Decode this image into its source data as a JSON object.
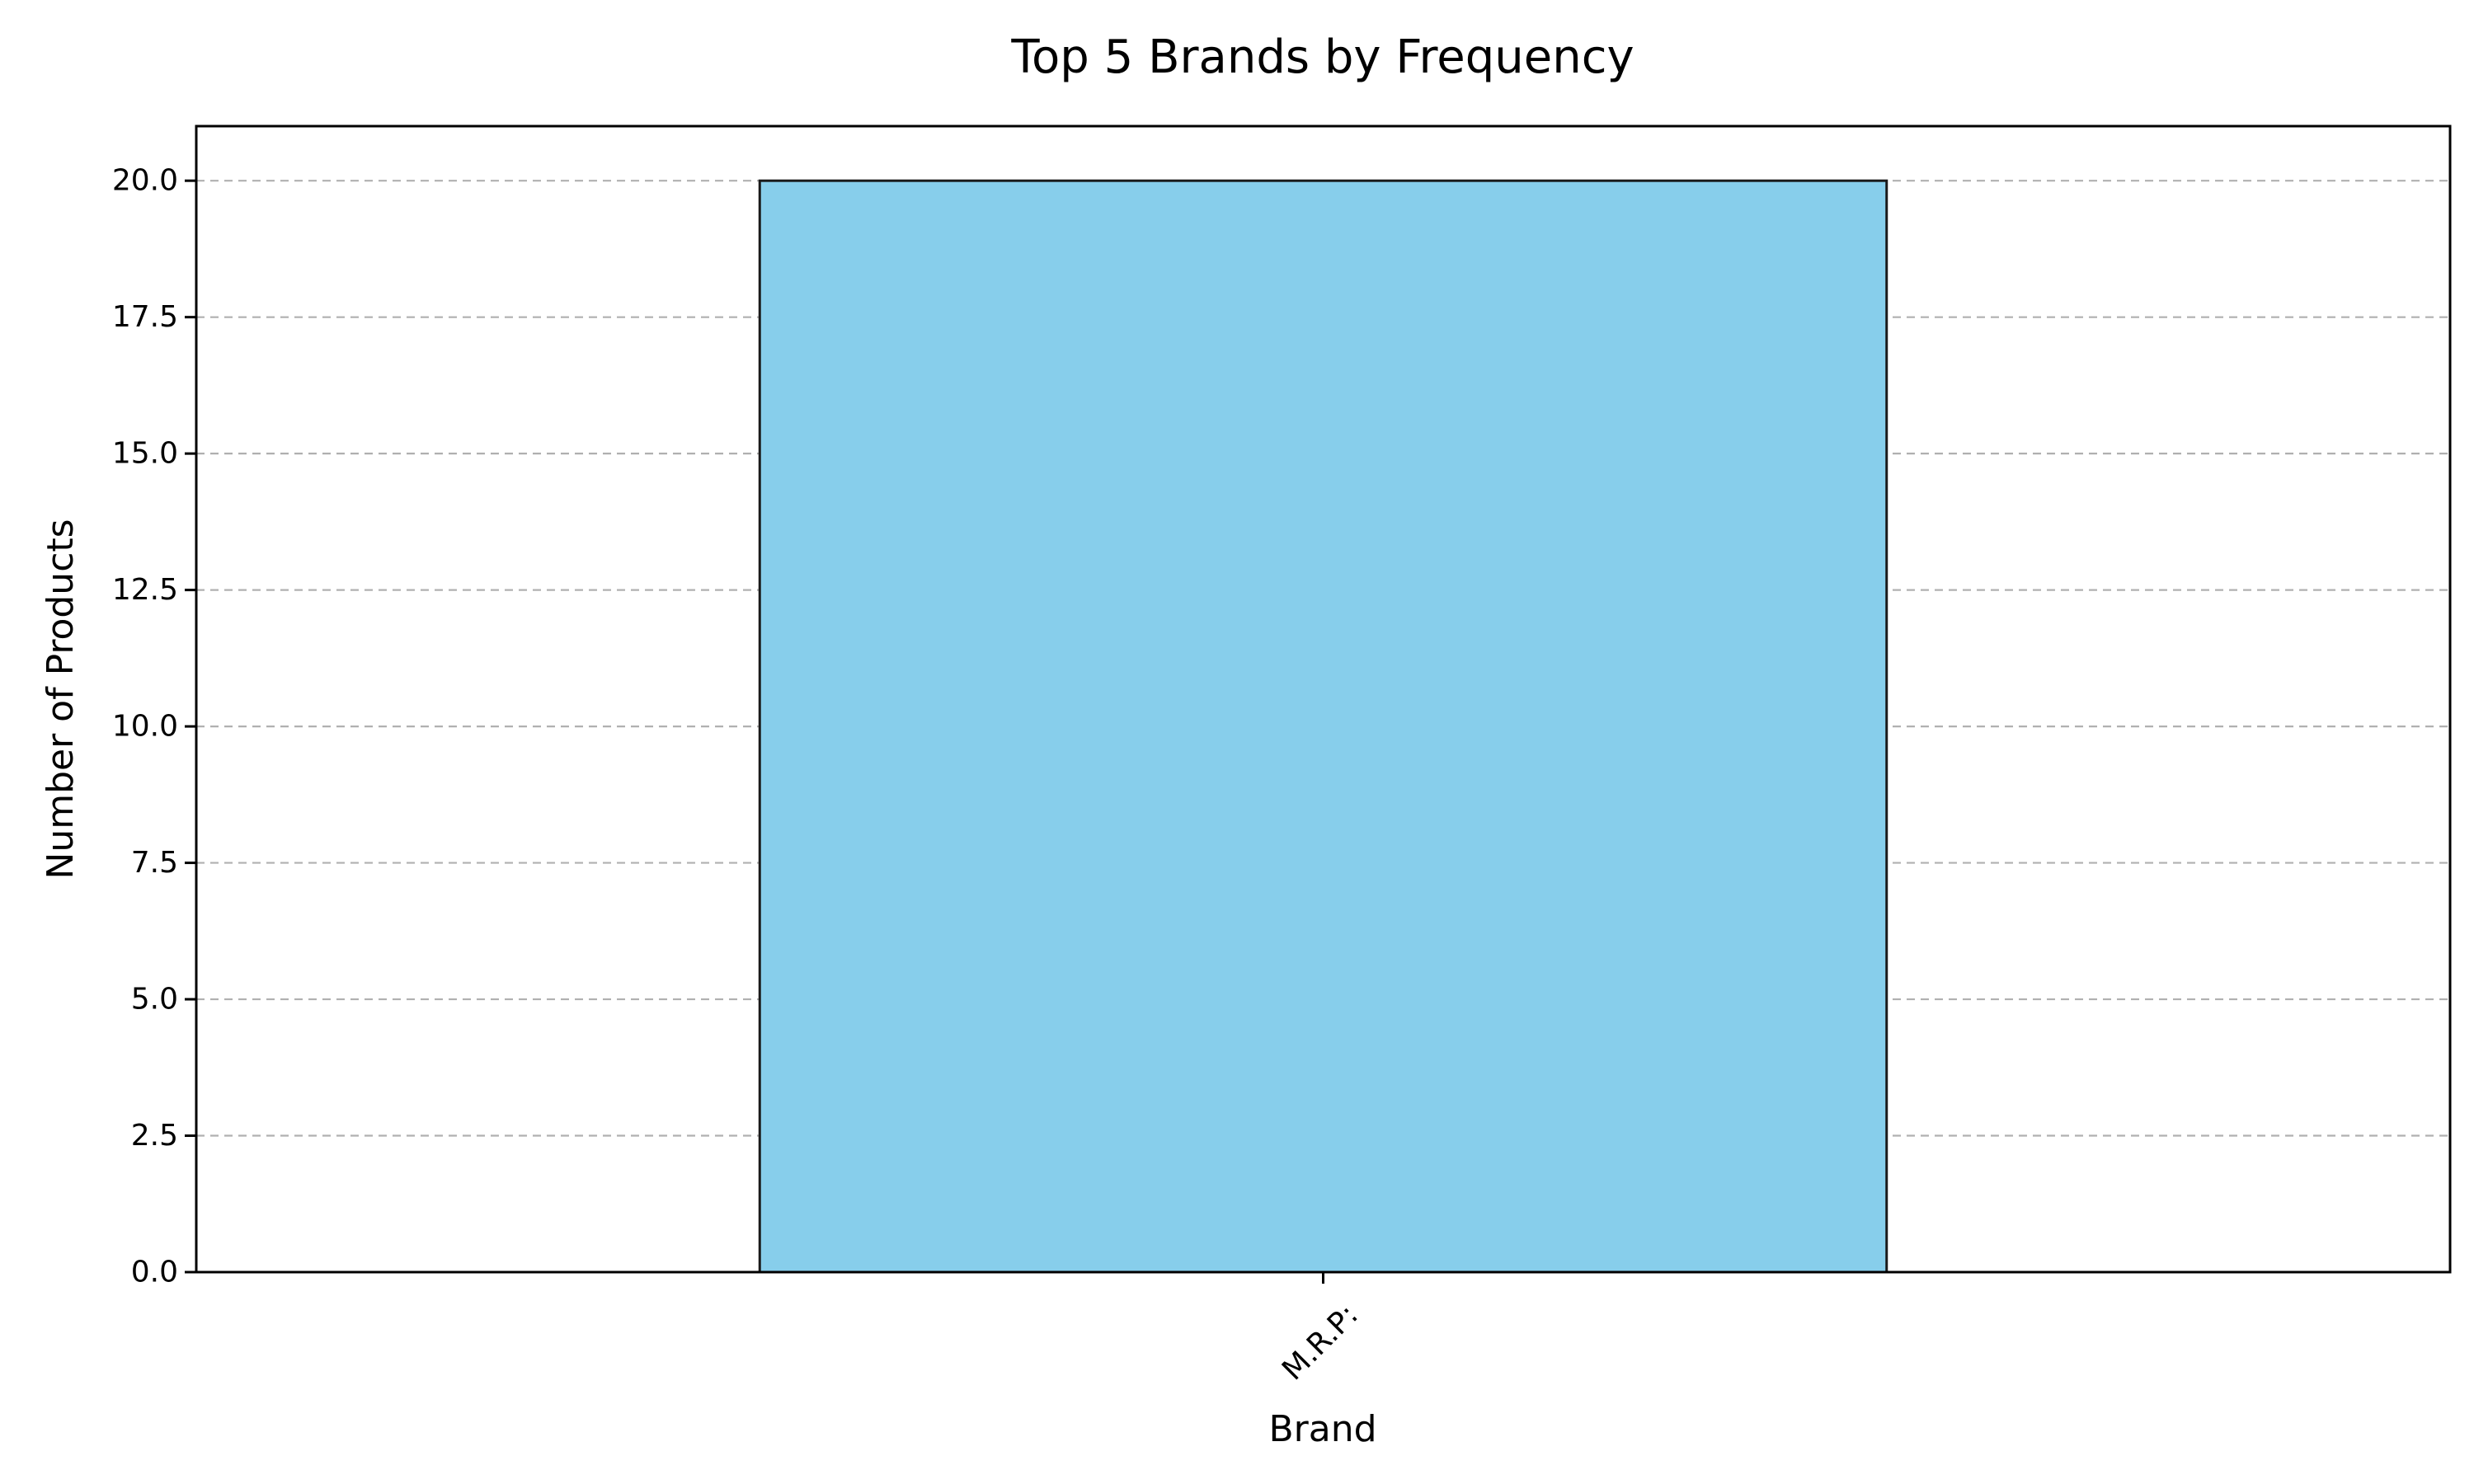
{
  "chart_data": {
    "type": "bar",
    "title": "Top 5 Brands by Frequency",
    "xlabel": "Brand",
    "ylabel": "Number of Products",
    "categories": [
      "M.R.P:"
    ],
    "values": [
      20
    ],
    "ylim": [
      0,
      21
    ],
    "yticks": [
      0,
      2.5,
      5,
      7.5,
      10,
      12.5,
      15,
      17.5,
      20
    ],
    "ytick_labels": [
      "0.0",
      "2.5",
      "5.0",
      "7.5",
      "10.0",
      "12.5",
      "15.0",
      "17.5",
      "20.0"
    ],
    "xtick_rotation": 45,
    "grid": "y-dashed",
    "legend": "none",
    "colors": {
      "bar_fill": "#87ceeb",
      "bar_edge": "#1a1a1a",
      "grid": "#b0b0b0",
      "axis": "#000000"
    }
  }
}
